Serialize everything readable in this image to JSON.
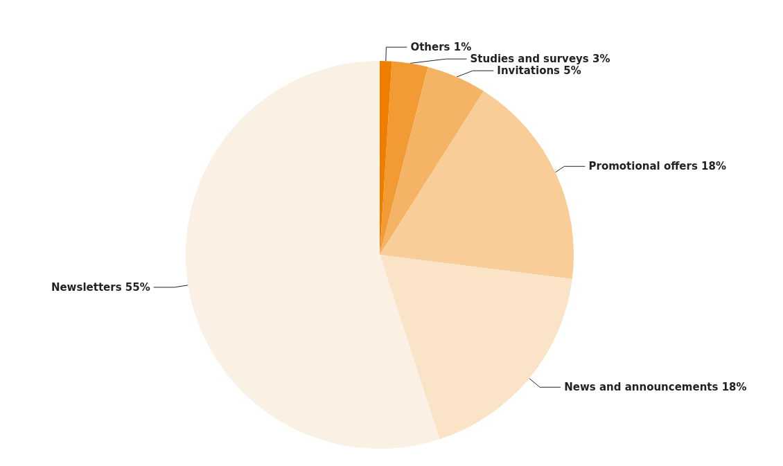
{
  "chart_data": {
    "type": "pie",
    "categories": [
      "Others",
      "Studies and surveys",
      "Invitations",
      "Promotional offers",
      "News and announcements",
      "Newsletters"
    ],
    "values": [
      1,
      3,
      5,
      18,
      18,
      55
    ],
    "value_labels": [
      "1%",
      "3%",
      "5%",
      "18%",
      "18%",
      "55%"
    ],
    "colors": [
      "#ee7d00",
      "#f29a34",
      "#f5b366",
      "#f8cd97",
      "#fbe3c8",
      "#fbf0e4"
    ],
    "legend": false
  }
}
